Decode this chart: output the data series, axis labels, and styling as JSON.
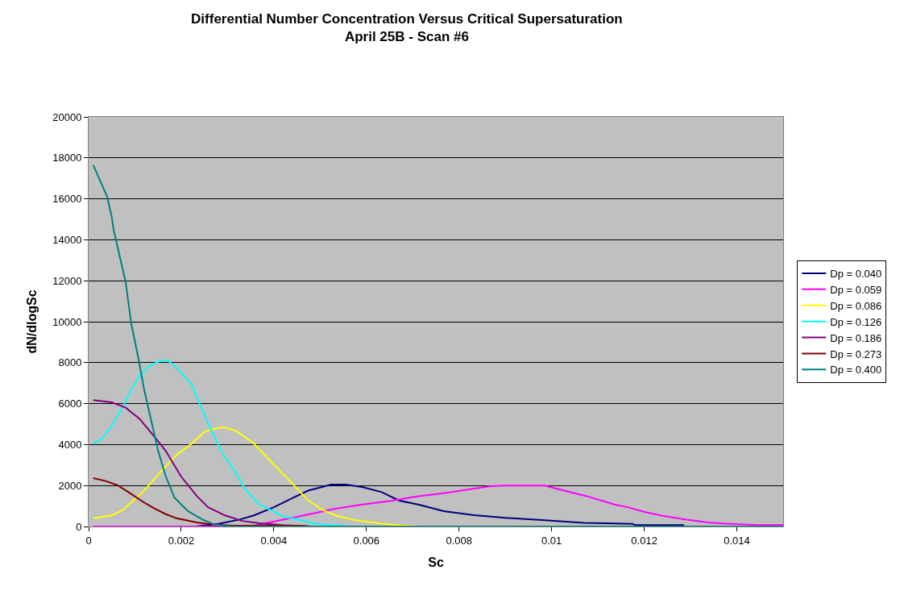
{
  "chart_data": {
    "type": "line",
    "title": "Differential Number Concentration Versus Critical Supersaturation",
    "subtitle": "April 25B - Scan #6",
    "xlabel": "Sc",
    "ylabel": "dN/dlogSc",
    "xlim": [
      0,
      0.015
    ],
    "xticks": [
      0,
      0.002,
      0.004,
      0.006,
      0.008,
      0.01,
      0.012,
      0.014
    ],
    "ylim": [
      0,
      20000
    ],
    "yticks": [
      0,
      2000,
      4000,
      6000,
      8000,
      10000,
      12000,
      14000,
      16000,
      18000,
      20000
    ],
    "grid": "y",
    "legend": "right",
    "marker": "none",
    "line_style": "solid",
    "series": [
      {
        "name": "Dp = 0.040",
        "color": "#000080",
        "x": [
          0.0023,
          0.0028,
          0.00326,
          0.00357,
          0.004,
          0.00437,
          0.00474,
          0.00524,
          0.00555,
          0.00591,
          0.00633,
          0.0067,
          0.00712,
          0.00767,
          0.00833,
          0.009,
          0.00973,
          0.0107,
          0.01175,
          0.0118,
          0.01286
        ],
        "values": [
          0,
          130,
          340,
          540,
          940,
          1350,
          1750,
          2050,
          2050,
          1930,
          1680,
          1270,
          1070,
          750,
          550,
          420,
          320,
          180,
          130,
          70,
          70
        ]
      },
      {
        "name": "Dp = 0.059",
        "color": "#ff00ff",
        "x": [
          0.0001,
          0.0035,
          0.0039,
          0.0045,
          0.0052,
          0.0053,
          0.00591,
          0.00652,
          0.00712,
          0.00773,
          0.00833,
          0.00864,
          0.00894,
          0.00985,
          0.01015,
          0.01076,
          0.01136,
          0.01166,
          0.01203,
          0.0124,
          0.01289,
          0.01338,
          0.01378,
          0.01437,
          0.015
        ],
        "values": [
          0,
          0,
          200,
          470,
          810,
          860,
          1070,
          1250,
          1480,
          1640,
          1850,
          1960,
          2000,
          2000,
          1820,
          1480,
          1070,
          930,
          700,
          520,
          340,
          200,
          140,
          80,
          70
        ]
      },
      {
        "name": "Dp = 0.086",
        "color": "#ffff00",
        "x": [
          0.0001,
          0.0005,
          0.00074,
          0.00117,
          0.00154,
          0.0019,
          0.00222,
          0.00252,
          0.00283,
          0.00295,
          0.0032,
          0.00354,
          0.00394,
          0.00437,
          0.00474,
          0.00506,
          0.00536,
          0.00573,
          0.0062,
          0.00663,
          0.0071,
          0.015
        ],
        "values": [
          400,
          540,
          810,
          1680,
          2630,
          3500,
          4040,
          4650,
          4830,
          4830,
          4650,
          4110,
          3170,
          2160,
          1280,
          800,
          520,
          320,
          180,
          70,
          0,
          0
        ]
      },
      {
        "name": "Dp = 0.126",
        "color": "#00ffff",
        "x": [
          0.0001,
          0.0003,
          0.0005,
          0.00074,
          0.00092,
          0.0011,
          0.0013,
          0.00154,
          0.00172,
          0.0019,
          0.00222,
          0.0024,
          0.00258,
          0.00289,
          0.00314,
          0.00338,
          0.00369,
          0.00418,
          0.00492,
          0.0057
        ],
        "values": [
          4040,
          4310,
          4920,
          5860,
          6670,
          7340,
          7820,
          8090,
          8090,
          7750,
          6940,
          6000,
          5050,
          3570,
          2760,
          1820,
          1080,
          510,
          130,
          0
        ]
      },
      {
        "name": "Dp = 0.186",
        "color": "#800080",
        "x": [
          0.0001,
          0.0005,
          0.0008,
          0.0011,
          0.00145,
          0.00166,
          0.002,
          0.00234,
          0.00258,
          0.00295,
          0.00332,
          0.00369,
          0.00418,
          0.0048
        ],
        "values": [
          6170,
          6060,
          5800,
          5260,
          4310,
          3710,
          2430,
          1480,
          940,
          540,
          270,
          160,
          70,
          0
        ]
      },
      {
        "name": "Dp = 0.273",
        "color": "#800000",
        "x": [
          0.0001,
          0.00037,
          0.00062,
          0.0009,
          0.00117,
          0.00142,
          0.00166,
          0.0019,
          0.00234,
          0.00265,
          0.0031,
          0.0046,
          0.0048
        ],
        "values": [
          2360,
          2220,
          2020,
          1620,
          1210,
          880,
          610,
          400,
          200,
          110,
          40,
          40,
          0
        ]
      },
      {
        "name": "Dp = 0.400",
        "color": "#008080",
        "x": [
          0.0001,
          0.0004,
          0.0005,
          0.00054,
          0.0008,
          0.00092,
          0.00108,
          0.0012,
          0.00135,
          0.0015,
          0.00166,
          0.00185,
          0.00215,
          0.00246,
          0.0027,
          0.0031,
          0.015
        ],
        "values": [
          17640,
          16110,
          15100,
          14490,
          11930,
          9910,
          8160,
          6670,
          5190,
          3710,
          2490,
          1420,
          740,
          340,
          110,
          0,
          0
        ]
      }
    ]
  }
}
